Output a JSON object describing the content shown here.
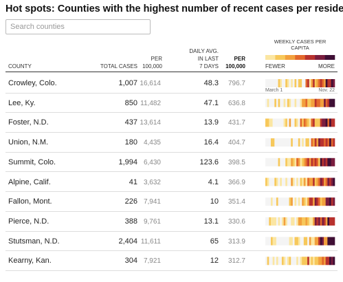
{
  "header": {
    "title": "Hot spots: Counties with the highest number of recent cases per resident"
  },
  "search": {
    "placeholder": "Search counties"
  },
  "table": {
    "columns": {
      "county": "COUNTY",
      "total_cases": "TOTAL CASES",
      "per_100k": [
        "PER",
        "100,000"
      ],
      "daily_avg": [
        "DAILY AVG.",
        "IN LAST",
        "7 DAYS"
      ],
      "per_100k_7day": [
        "PER",
        "100,000"
      ],
      "weekly": [
        "WEEKLY CASES PER",
        "CAPITA"
      ],
      "fewer": "FEWER",
      "more": "MORE",
      "start": "March 1",
      "end": "Nov. 22"
    },
    "rows": [
      [
        "Crowley, Colo.",
        "1,007",
        "16,614",
        "48.3",
        "796.7"
      ],
      [
        "Lee, Ky.",
        "850",
        "11,482",
        "47.1",
        "636.8"
      ],
      [
        "Foster, N.D.",
        "437",
        "13,614",
        "13.9",
        "431.7"
      ],
      [
        "Union, N.M.",
        "180",
        "4,435",
        "16.4",
        "404.7"
      ],
      [
        "Summit, Colo.",
        "1,994",
        "6,430",
        "123.6",
        "398.5"
      ],
      [
        "Alpine, Calif.",
        "41",
        "3,632",
        "4.1",
        "366.9"
      ],
      [
        "Fallon, Mont.",
        "226",
        "7,941",
        "10",
        "351.4"
      ],
      [
        "Pierce, N.D.",
        "388",
        "9,761",
        "13.1",
        "330.6"
      ],
      [
        "Stutsman, N.D.",
        "2,404",
        "11,611",
        "65",
        "313.9"
      ],
      [
        "Kearny, Kan.",
        "304",
        "7,921",
        "12",
        "312.7"
      ]
    ]
  }
}
